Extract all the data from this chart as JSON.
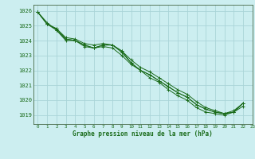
{
  "title": "Graphe pression niveau de la mer (hPa)",
  "bg_color": "#cceef0",
  "grid_color": "#aad4d8",
  "line_color": "#1a6b1a",
  "marker_color": "#1a6b1a",
  "xlim": [
    -0.5,
    23
  ],
  "ylim": [
    1018.4,
    1026.4
  ],
  "yticks": [
    1019,
    1020,
    1021,
    1022,
    1023,
    1024,
    1025,
    1026
  ],
  "xticks": [
    0,
    1,
    2,
    3,
    4,
    5,
    6,
    7,
    8,
    9,
    10,
    11,
    12,
    13,
    14,
    15,
    16,
    17,
    18,
    19,
    20,
    21,
    22,
    23
  ],
  "series": [
    [
      1025.9,
      1025.1,
      1024.7,
      1024.0,
      1024.0,
      1023.6,
      1023.5,
      1023.6,
      1023.5,
      1023.0,
      1022.4,
      1022.0,
      1021.5,
      1021.2,
      1020.7,
      1020.3,
      1020.0,
      1019.5,
      1019.2,
      1019.1,
      1019.0,
      1019.2,
      1019.6
    ],
    [
      1025.9,
      1025.1,
      1024.8,
      1024.1,
      1024.0,
      1023.7,
      1023.5,
      1023.7,
      1023.7,
      1023.2,
      1022.5,
      1022.0,
      1021.7,
      1021.3,
      1020.9,
      1020.5,
      1020.2,
      1019.7,
      1019.4,
      1019.2,
      1019.1,
      1019.2,
      1019.8
    ],
    [
      1025.9,
      1025.1,
      1024.8,
      1024.2,
      1024.1,
      1023.8,
      1023.7,
      1023.8,
      1023.7,
      1023.3,
      1022.7,
      1022.2,
      1021.9,
      1021.5,
      1021.1,
      1020.7,
      1020.4,
      1019.9,
      1019.5,
      1019.3,
      1019.1,
      1019.3,
      1019.8
    ],
    [
      1025.9,
      1025.2,
      1024.7,
      1024.1,
      1024.0,
      1023.7,
      1023.5,
      1023.7,
      1023.7,
      1023.3,
      1022.5,
      1022.0,
      1021.7,
      1021.3,
      1020.9,
      1020.5,
      1020.2,
      1019.7,
      1019.4,
      1019.2,
      1019.1,
      1019.2,
      1019.8
    ]
  ]
}
